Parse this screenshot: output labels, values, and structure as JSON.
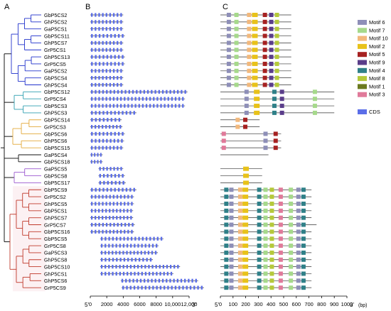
{
  "panels": {
    "a": "A",
    "b": "B",
    "c": "C"
  },
  "genes": [
    "GbP5CS2",
    "GhP5CS2",
    "GaP5CS1",
    "GbP5CS11",
    "GhP5CS7",
    "GrP5CS1",
    "GhP5CS13",
    "GrP5CS5",
    "GaP5CS2",
    "GbP5CS4",
    "GhP5CS4",
    "GbP5CS12",
    "GrP5CS4",
    "GbP5CS3",
    "GhP5CS3",
    "GbP5CS14",
    "GrP5CS3",
    "GbP5CS6",
    "GhP5CS6",
    "GbP5CS15",
    "GaP5CS4",
    "GbP5CS18",
    "GaP5CS5",
    "GbP5CS8",
    "GbP5CS17",
    "GbP5CS9",
    "GrP5CS2",
    "GhP5CS5",
    "GbP5CS1",
    "GhP5CS7",
    "GrP5CS7",
    "GbP5CS16",
    "GbP5CS5",
    "GrP5CS8",
    "GaP5CS3",
    "GhP5CS8",
    "GbP5CS10",
    "GhP5CS1",
    "GhP5CS6",
    "GrP5CS9"
  ],
  "gene_structure_axis": {
    "start_label": "5'",
    "end_label": "3'",
    "ticks": [
      "0",
      "2000",
      "4000",
      "6000",
      "8000",
      "10,000",
      "12,000"
    ]
  },
  "motif_axis": {
    "start_label": "5'",
    "end_label": "3'",
    "ticks": [
      "0",
      "100",
      "200",
      "300",
      "400",
      "500",
      "600",
      "700",
      "800",
      "900",
      "1000"
    ],
    "unit": "(bp)"
  },
  "legend": {
    "motifs": [
      {
        "label": "Motif 6",
        "color": "#8e8fb8"
      },
      {
        "label": "Motif 7",
        "color": "#a6d98b"
      },
      {
        "label": "Motif 10",
        "color": "#f2b87c"
      },
      {
        "label": "Motif 2",
        "color": "#e8c21a"
      },
      {
        "label": "Motif 5",
        "color": "#a62121"
      },
      {
        "label": "Motif 9",
        "color": "#5a3d8a"
      },
      {
        "label": "Motif 4",
        "color": "#2f8088"
      },
      {
        "label": "Motif 8",
        "color": "#b5c93a"
      },
      {
        "label": "Motif 1",
        "color": "#6b7a1e"
      },
      {
        "label": "Motif 3",
        "color": "#e07a9a"
      }
    ],
    "cds": {
      "label": "CDS",
      "color": "#5b6ee8"
    }
  },
  "clade_colors": [
    "#2233cc",
    "#2f9fb0",
    "#e3a93a",
    "#111111",
    "#9b59d0",
    "#c0392b"
  ]
}
